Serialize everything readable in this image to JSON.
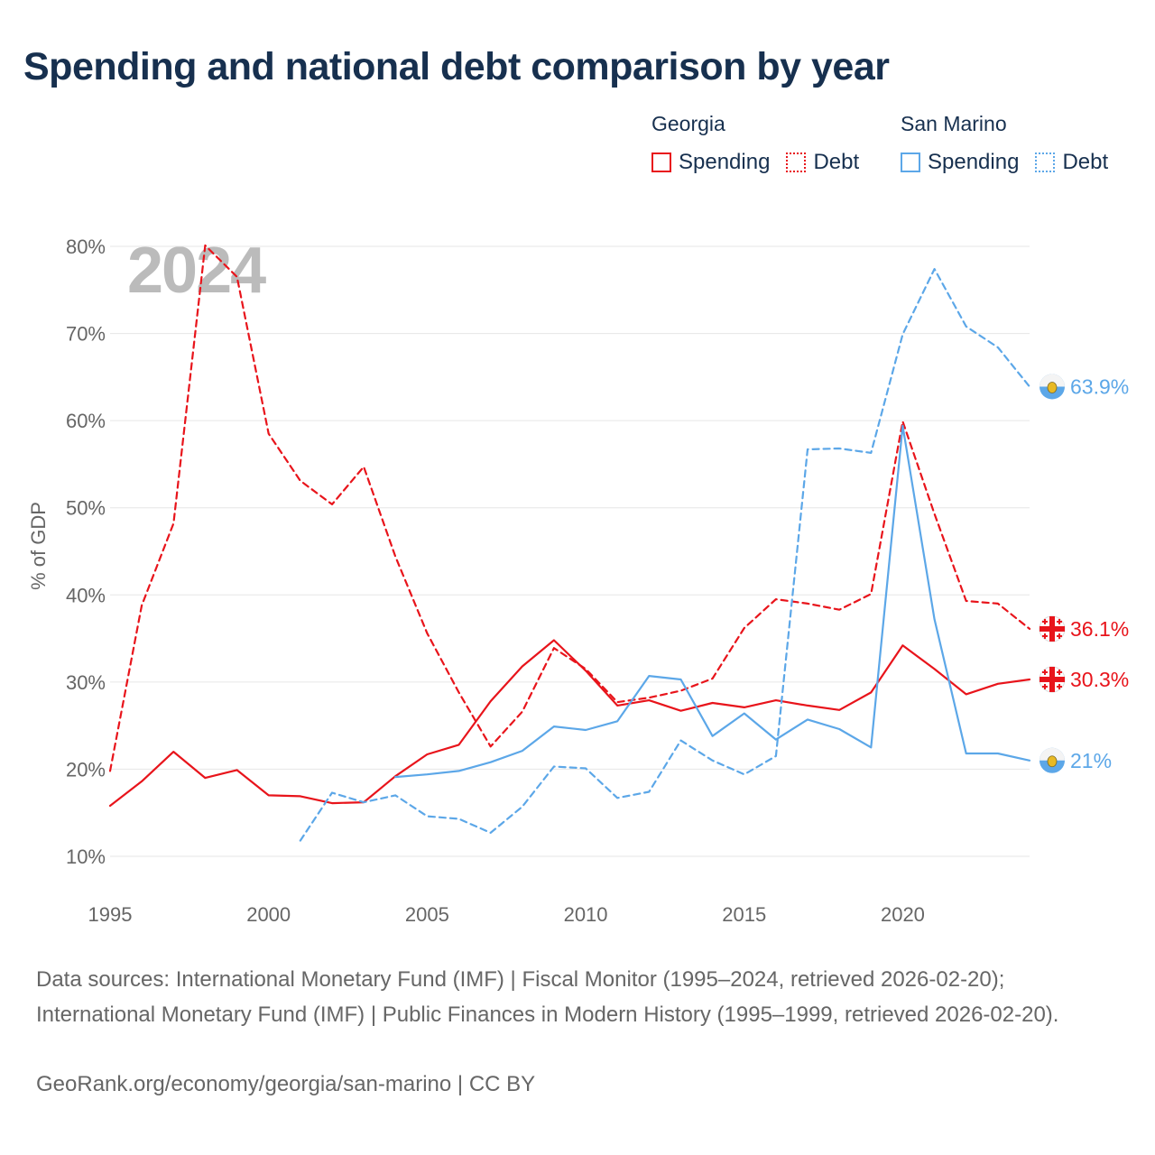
{
  "title": "Spending and national debt comparison by year",
  "year_watermark": "2024",
  "legend": {
    "groups": [
      {
        "name": "Georgia",
        "items": [
          {
            "label": "Spending",
            "color": "#e8141b",
            "style": "solid"
          },
          {
            "label": "Debt",
            "color": "#e8141b",
            "style": "dotted"
          }
        ]
      },
      {
        "name": "San Marino",
        "items": [
          {
            "label": "Spending",
            "color": "#5ca7e8",
            "style": "solid"
          },
          {
            "label": "Debt",
            "color": "#5ca7e8",
            "style": "dotted"
          }
        ]
      }
    ]
  },
  "colors": {
    "georgia": "#e8141b",
    "san_marino": "#5ca7e8",
    "grid": "#e6e6e6",
    "axis_text": "#666666",
    "title": "#17304f",
    "watermark": "#bbbbbb"
  },
  "chart_data": {
    "type": "line",
    "title": "Spending and national debt comparison by year",
    "xlabel": "",
    "ylabel": "% of GDP",
    "xlim": [
      1995,
      2024
    ],
    "ylim": [
      10,
      80
    ],
    "x_ticks": [
      1995,
      2000,
      2005,
      2010,
      2015,
      2020
    ],
    "x_tick_labels": [
      "1995",
      "2000",
      "2005",
      "2010",
      "2015",
      "2020"
    ],
    "y_ticks": [
      10,
      20,
      30,
      40,
      50,
      60,
      70,
      80
    ],
    "y_tick_labels": [
      "10%",
      "20%",
      "30%",
      "40%",
      "50%",
      "60%",
      "70%",
      "80%"
    ],
    "grid": true,
    "series": [
      {
        "name": "Georgia Spending",
        "country": "Georgia",
        "metric": "Spending",
        "color": "#e8141b",
        "dash": "solid",
        "x": [
          1995,
          1996,
          1997,
          1998,
          1999,
          2000,
          2001,
          2002,
          2003,
          2004,
          2005,
          2006,
          2007,
          2008,
          2009,
          2010,
          2011,
          2012,
          2013,
          2014,
          2015,
          2016,
          2017,
          2018,
          2019,
          2020,
          2021,
          2022,
          2023,
          2024
        ],
        "values": [
          15.8,
          18.6,
          22.0,
          19.0,
          19.9,
          17.0,
          16.9,
          16.1,
          16.2,
          19.2,
          21.7,
          22.8,
          27.8,
          31.8,
          34.8,
          31.3,
          27.3,
          27.9,
          26.7,
          27.6,
          27.1,
          27.9,
          27.3,
          26.8,
          28.8,
          34.2,
          31.5,
          28.6,
          29.8,
          30.3
        ],
        "end_label": "30.3%",
        "end_value": 30.3
      },
      {
        "name": "Georgia Debt",
        "country": "Georgia",
        "metric": "Debt",
        "color": "#e8141b",
        "dash": "dashed",
        "x": [
          1995,
          1996,
          1997,
          1998,
          1999,
          2000,
          2001,
          2002,
          2003,
          2004,
          2005,
          2006,
          2007,
          2008,
          2009,
          2010,
          2011,
          2012,
          2013,
          2014,
          2015,
          2016,
          2017,
          2018,
          2019,
          2020,
          2021,
          2022,
          2023,
          2024
        ],
        "values": [
          19.8,
          38.8,
          48.2,
          80.1,
          76.5,
          58.5,
          53.1,
          50.4,
          54.7,
          44.4,
          35.6,
          28.8,
          22.6,
          26.6,
          33.9,
          31.5,
          27.7,
          28.2,
          29.0,
          30.4,
          36.2,
          39.5,
          39.0,
          38.3,
          40.1,
          59.9,
          49.3,
          39.3,
          39.0,
          36.1
        ],
        "end_label": "36.1%",
        "end_value": 36.1
      },
      {
        "name": "San Marino Spending",
        "country": "San Marino",
        "metric": "Spending",
        "color": "#5ca7e8",
        "dash": "solid",
        "x": [
          2004,
          2005,
          2006,
          2007,
          2008,
          2009,
          2010,
          2011,
          2012,
          2013,
          2014,
          2015,
          2016,
          2017,
          2018,
          2019,
          2020,
          2021,
          2022,
          2023,
          2024
        ],
        "values": [
          19.1,
          19.4,
          19.8,
          20.8,
          22.1,
          24.9,
          24.5,
          25.5,
          30.7,
          30.3,
          23.8,
          26.4,
          23.4,
          25.7,
          24.6,
          22.5,
          59.4,
          37.2,
          21.8,
          21.8,
          21.0
        ],
        "end_label": "21%",
        "end_value": 21.0
      },
      {
        "name": "San Marino Debt",
        "country": "San Marino",
        "metric": "Debt",
        "color": "#5ca7e8",
        "dash": "dashed",
        "x": [
          2001,
          2002,
          2003,
          2004,
          2005,
          2006,
          2007,
          2008,
          2009,
          2010,
          2011,
          2012,
          2013,
          2014,
          2015,
          2016,
          2017,
          2018,
          2019,
          2020,
          2021,
          2022,
          2023,
          2024
        ],
        "values": [
          11.8,
          17.3,
          16.2,
          17.0,
          14.6,
          14.3,
          12.7,
          15.7,
          20.3,
          20.1,
          16.7,
          17.4,
          23.3,
          21.0,
          19.4,
          21.5,
          56.7,
          56.8,
          56.3,
          69.9,
          77.4,
          70.8,
          68.4,
          63.9
        ],
        "end_label": "63.9%",
        "end_value": 63.9
      }
    ]
  },
  "footer": {
    "sources": "Data sources: International Monetary Fund (IMF) | Fiscal Monitor (1995–2024, retrieved 2026-02-20); International Monetary Fund (IMF) | Public Finances in Modern History (1995–1999, retrieved 2026-02-20).",
    "credit": "GeoRank.org/economy/georgia/san-marino | CC BY"
  }
}
